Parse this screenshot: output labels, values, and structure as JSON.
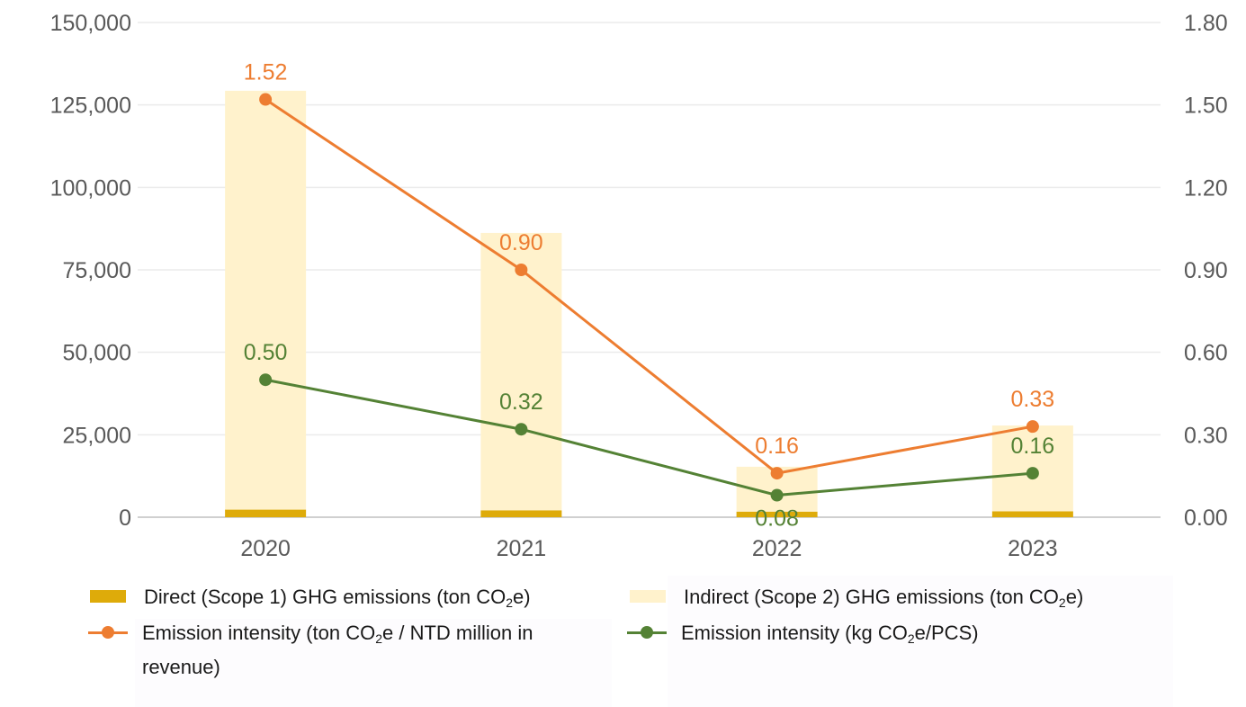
{
  "chart_data": {
    "type": "bar",
    "subtype": "stacked-bar-with-lines-dual-axis",
    "title": "",
    "categories": [
      "2020",
      "2021",
      "2022",
      "2023"
    ],
    "left_axis": {
      "label": "",
      "ylim": [
        0,
        150000
      ],
      "ticks": [
        0,
        25000,
        50000,
        75000,
        100000,
        125000,
        150000
      ],
      "tick_labels": [
        "0",
        "25,000",
        "50,000",
        "75,000",
        "100,000",
        "125,000",
        "150,000"
      ]
    },
    "right_axis": {
      "label": "",
      "ylim": [
        0,
        1.8
      ],
      "ticks": [
        0,
        0.3,
        0.6,
        0.9,
        1.2,
        1.5,
        1.8
      ],
      "tick_labels": [
        "0.00",
        "0.30",
        "0.60",
        "0.90",
        "1.20",
        "1.50",
        "1.80"
      ]
    },
    "grid": true,
    "legend_position": "bottom",
    "series": [
      {
        "name": "Direct (Scope 1) GHG emissions (ton CO2e)",
        "legend_prefix": "Direct (Scope 1) GHG emissions (ton CO",
        "legend_sub": "2",
        "legend_suffix": "e)",
        "type": "bar",
        "axis": "left",
        "stack": "emissions",
        "color": "#DEAB0A",
        "values": [
          2300,
          2100,
          1700,
          1800
        ]
      },
      {
        "name": "Indirect (Scope 2) GHG emissions (ton CO2e)",
        "legend_prefix": "Indirect (Scope 2) GHG emissions (ton CO",
        "legend_sub": "2",
        "legend_suffix": "e)",
        "type": "bar",
        "axis": "left",
        "stack": "emissions",
        "color": "#FFF2CC",
        "values": [
          127000,
          84100,
          13600,
          26000
        ]
      },
      {
        "name": "Emission intensity (ton CO2e / NTD million in revenue)",
        "legend_prefix": "Emission intensity (ton CO",
        "legend_sub": "2",
        "legend_suffix": "e / NTD million in revenue)",
        "type": "line",
        "axis": "right",
        "color": "#ED7D31",
        "values": [
          1.52,
          0.9,
          0.16,
          0.33
        ],
        "labels": [
          "1.52",
          "0.90",
          "0.16",
          "0.33"
        ],
        "label_position": "above"
      },
      {
        "name": "Emission intensity (kg CO2e/PCS)",
        "legend_prefix": "Emission intensity (kg CO",
        "legend_sub": "2",
        "legend_suffix": "e/PCS)",
        "type": "line",
        "axis": "right",
        "color": "#548235",
        "values": [
          0.5,
          0.32,
          0.08,
          0.16
        ],
        "labels": [
          "0.50",
          "0.32",
          "0.08",
          "0.16"
        ],
        "label_position": [
          "above",
          "above",
          "below",
          "above"
        ]
      }
    ]
  }
}
